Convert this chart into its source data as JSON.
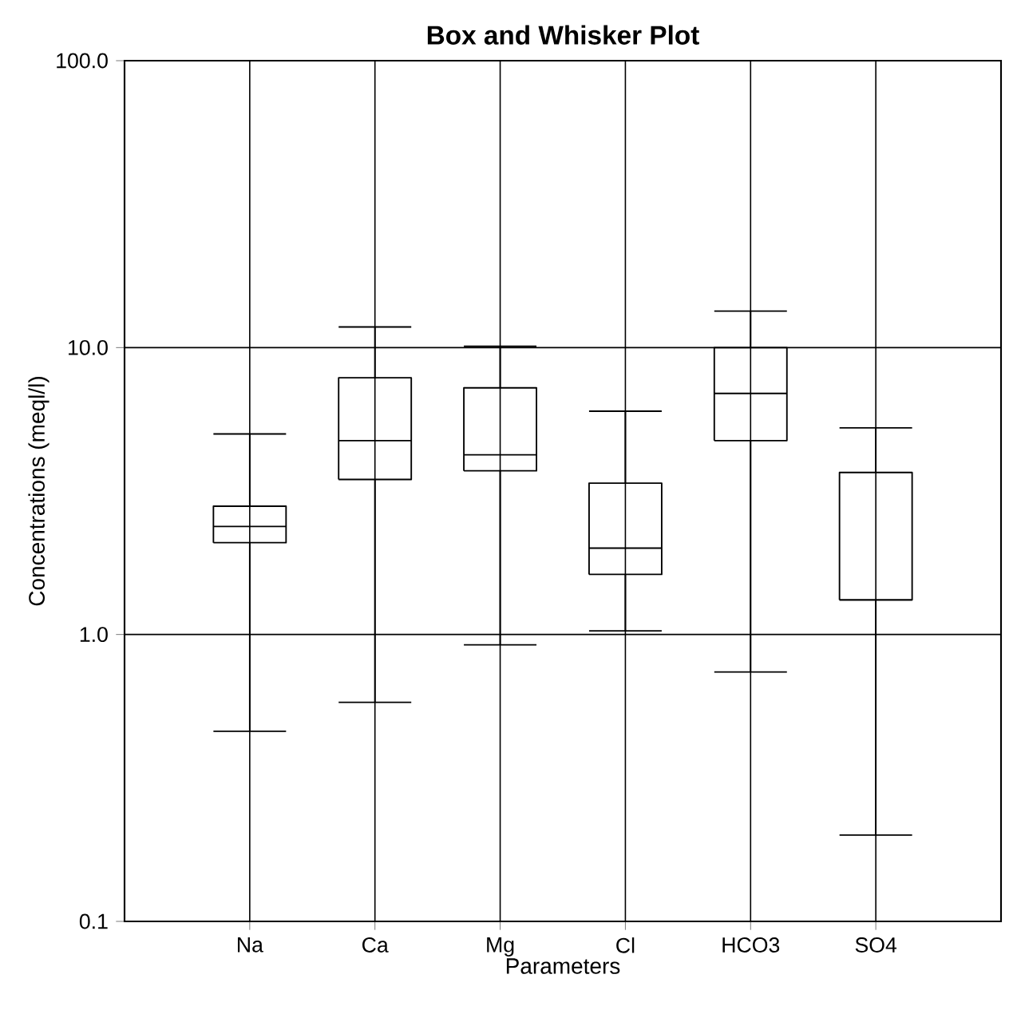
{
  "chart_data": {
    "type": "box",
    "title": "Box and Whisker Plot",
    "xlabel": "Parameters",
    "ylabel": "Concentrations (meql/l)",
    "categories": [
      "Na",
      "Ca",
      "Mg",
      "Cl",
      "HCO3",
      "SO4"
    ],
    "boxes": [
      {
        "low": 0.46,
        "q1": 2.09,
        "median": 2.38,
        "q3": 2.8,
        "high": 5.0
      },
      {
        "low": 0.58,
        "q1": 3.47,
        "median": 4.74,
        "q3": 7.85,
        "high": 11.8
      },
      {
        "low": 0.92,
        "q1": 3.72,
        "median": 4.23,
        "q3": 7.24,
        "high": 10.1
      },
      {
        "low": 1.03,
        "q1": 1.62,
        "median": 2.0,
        "q3": 3.37,
        "high": 6.0
      },
      {
        "low": 0.74,
        "q1": 4.74,
        "median": 6.92,
        "q3": 10.0,
        "high": 13.4
      },
      {
        "low": 0.2,
        "q1": 1.32,
        "median": 1.32,
        "q3": 3.67,
        "high": 5.25
      }
    ],
    "ylim": [
      0.1,
      100
    ],
    "yticks": [
      {
        "value": 0.1,
        "label": "0.1"
      },
      {
        "value": 1,
        "label": "1.0"
      },
      {
        "value": 10,
        "label": "10.0"
      },
      {
        "value": 100,
        "label": "100.0"
      }
    ],
    "log": "y",
    "grid": true
  }
}
